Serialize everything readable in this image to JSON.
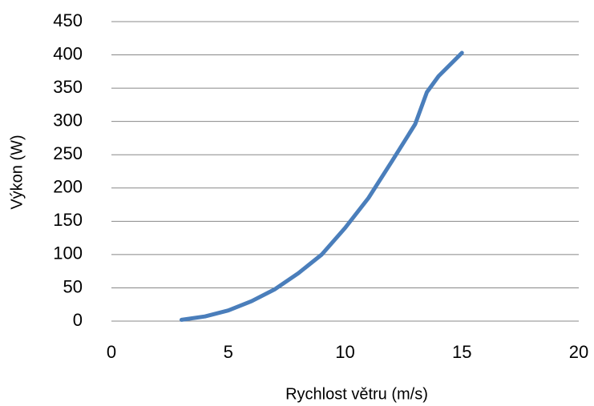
{
  "chart_data": {
    "type": "line",
    "x_label": "Rychlost větru (m/s)",
    "y_label": "Výkon (W)",
    "x": [
      3,
      4,
      5,
      6,
      7,
      8,
      9,
      10,
      11,
      12,
      13,
      13.5,
      14,
      15
    ],
    "series": [
      {
        "color": "#4a7ebb",
        "values": [
          2,
          7,
          16,
          30,
          48,
          72,
          100,
          140,
          185,
          240,
          296,
          344,
          368,
          403
        ]
      }
    ],
    "xlim": [
      0,
      20
    ],
    "xticks": [
      0,
      5,
      10,
      15,
      20
    ],
    "ylim": [
      0,
      450
    ],
    "yticks": [
      0,
      50,
      100,
      150,
      200,
      250,
      300,
      350,
      400,
      450
    ],
    "grid": true
  }
}
